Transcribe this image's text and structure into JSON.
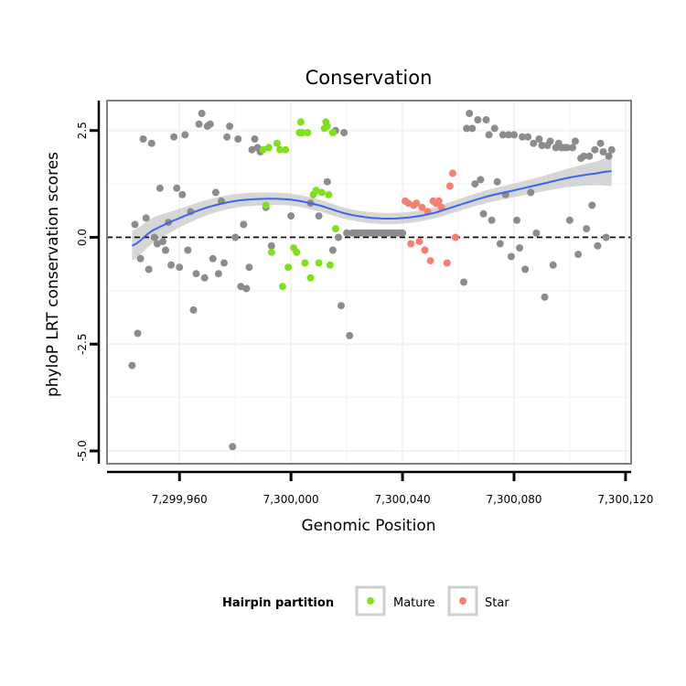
{
  "colors": {
    "other": "#8c8c8c",
    "mature": "#7fe11b",
    "star": "#f57f73",
    "smooth_line": "#3b67e8",
    "ribbon": "#cfcfcf",
    "grid": "#f2f2f2",
    "panel_border": "#7f7f7f"
  },
  "chart_data": {
    "type": "scatter",
    "title": "Conservation",
    "xlabel": "Genomic Position",
    "ylabel": "phyloP LRT conservation scores",
    "xlim": [
      7299934,
      7300122
    ],
    "ylim": [
      -5.3,
      3.2
    ],
    "x_ticks": [
      {
        "value": 7299960,
        "label": "7,299,960"
      },
      {
        "value": 7300000,
        "label": "7,300,000"
      },
      {
        "value": 7300040,
        "label": "7,300,040"
      },
      {
        "value": 7300080,
        "label": "7,300,080"
      },
      {
        "value": 7300120,
        "label": "7,300,120"
      }
    ],
    "y_ticks": [
      {
        "value": 2.5,
        "label": "2.5"
      },
      {
        "value": 0,
        "label": "0.0"
      },
      {
        "value": -2.5,
        "label": "-2.5"
      },
      {
        "value": -5,
        "label": "-5.0"
      }
    ],
    "hline": {
      "y": 0,
      "style": "dashed"
    },
    "legend": {
      "title": "Hairpin partition",
      "position": "bottom",
      "entries": [
        {
          "key": "mature",
          "label": "Mature"
        },
        {
          "key": "star",
          "label": "Star"
        }
      ]
    },
    "series": [
      {
        "name": "Other",
        "key": "other",
        "points": [
          [
            7299943,
            -3.0
          ],
          [
            7299944,
            0.3
          ],
          [
            7299945,
            -2.25
          ],
          [
            7299946,
            -0.5
          ],
          [
            7299947,
            2.3
          ],
          [
            7299948,
            0.45
          ],
          [
            7299949,
            -0.75
          ],
          [
            7299950,
            2.2
          ],
          [
            7299951,
            0.0
          ],
          [
            7299952,
            -0.15
          ],
          [
            7299953,
            1.15
          ],
          [
            7299954,
            -0.1
          ],
          [
            7299955,
            -0.3
          ],
          [
            7299956,
            0.35
          ],
          [
            7299957,
            -0.65
          ],
          [
            7299958,
            2.35
          ],
          [
            7299959,
            1.15
          ],
          [
            7299960,
            -0.7
          ],
          [
            7299961,
            1.0
          ],
          [
            7299962,
            2.4
          ],
          [
            7299963,
            -0.3
          ],
          [
            7299964,
            0.6
          ],
          [
            7299965,
            -1.7
          ],
          [
            7299966,
            -0.85
          ],
          [
            7299967,
            2.65
          ],
          [
            7299968,
            2.9
          ],
          [
            7299969,
            -0.95
          ],
          [
            7299970,
            2.6
          ],
          [
            7299971,
            2.65
          ],
          [
            7299972,
            -0.5
          ],
          [
            7299973,
            1.05
          ],
          [
            7299974,
            -0.85
          ],
          [
            7299975,
            0.85
          ],
          [
            7299976,
            -0.6
          ],
          [
            7299977,
            2.35
          ],
          [
            7299978,
            2.6
          ],
          [
            7299979,
            -4.9
          ],
          [
            7299980,
            0.0
          ],
          [
            7299981,
            2.3
          ],
          [
            7299982,
            -1.15
          ],
          [
            7299983,
            0.3
          ],
          [
            7299984,
            -1.2
          ],
          [
            7299985,
            -0.7
          ],
          [
            7299986,
            2.05
          ],
          [
            7299987,
            2.3
          ],
          [
            7299988,
            2.1
          ],
          [
            7299989,
            2.0
          ],
          [
            7299991,
            0.7
          ],
          [
            7299993,
            -0.2
          ],
          [
            7300000,
            0.5
          ],
          [
            7300007,
            0.8
          ],
          [
            7300010,
            0.5
          ],
          [
            7300013,
            1.3
          ],
          [
            7300015,
            -0.3
          ],
          [
            7300016,
            2.5
          ],
          [
            7300017,
            0.0
          ],
          [
            7300018,
            -1.6
          ],
          [
            7300019,
            2.45
          ],
          [
            7300020,
            0.1
          ],
          [
            7300021,
            -2.3
          ],
          [
            7300022,
            0.1
          ],
          [
            7300023,
            0.1
          ],
          [
            7300024,
            0.1
          ],
          [
            7300025,
            0.1
          ],
          [
            7300026,
            0.1
          ],
          [
            7300027,
            0.1
          ],
          [
            7300028,
            0.1
          ],
          [
            7300029,
            0.1
          ],
          [
            7300030,
            0.1
          ],
          [
            7300031,
            0.1
          ],
          [
            7300032,
            0.1
          ],
          [
            7300033,
            0.1
          ],
          [
            7300034,
            0.1
          ],
          [
            7300035,
            0.1
          ],
          [
            7300036,
            0.1
          ],
          [
            7300037,
            0.1
          ],
          [
            7300038,
            0.1
          ],
          [
            7300039,
            0.1
          ],
          [
            7300040,
            0.1
          ],
          [
            7300062,
            -1.05
          ],
          [
            7300063,
            2.55
          ],
          [
            7300064,
            2.9
          ],
          [
            7300065,
            2.55
          ],
          [
            7300066,
            1.25
          ],
          [
            7300067,
            2.75
          ],
          [
            7300068,
            1.35
          ],
          [
            7300069,
            0.55
          ],
          [
            7300070,
            2.75
          ],
          [
            7300071,
            2.4
          ],
          [
            7300072,
            0.4
          ],
          [
            7300073,
            2.55
          ],
          [
            7300074,
            1.3
          ],
          [
            7300075,
            -0.15
          ],
          [
            7300076,
            2.4
          ],
          [
            7300077,
            1.0
          ],
          [
            7300078,
            2.4
          ],
          [
            7300079,
            -0.45
          ],
          [
            7300080,
            2.4
          ],
          [
            7300081,
            0.4
          ],
          [
            7300082,
            -0.25
          ],
          [
            7300083,
            2.35
          ],
          [
            7300084,
            -0.75
          ],
          [
            7300085,
            2.35
          ],
          [
            7300086,
            1.05
          ],
          [
            7300087,
            2.2
          ],
          [
            7300088,
            0.1
          ],
          [
            7300089,
            2.3
          ],
          [
            7300090,
            2.15
          ],
          [
            7300091,
            -1.4
          ],
          [
            7300092,
            2.15
          ],
          [
            7300093,
            2.25
          ],
          [
            7300094,
            -0.65
          ],
          [
            7300095,
            2.1
          ],
          [
            7300096,
            2.2
          ],
          [
            7300097,
            2.1
          ],
          [
            7300098,
            2.1
          ],
          [
            7300099,
            2.1
          ],
          [
            7300100,
            0.4
          ],
          [
            7300101,
            2.1
          ],
          [
            7300102,
            2.25
          ],
          [
            7300103,
            -0.4
          ],
          [
            7300104,
            1.85
          ],
          [
            7300105,
            1.9
          ],
          [
            7300106,
            0.2
          ],
          [
            7300107,
            1.9
          ],
          [
            7300108,
            0.75
          ],
          [
            7300109,
            2.05
          ],
          [
            7300110,
            -0.2
          ],
          [
            7300111,
            2.2
          ],
          [
            7300112,
            2.0
          ],
          [
            7300113,
            0.0
          ],
          [
            7300114,
            1.9
          ],
          [
            7300115,
            2.05
          ]
        ]
      },
      {
        "name": "Mature",
        "key": "mature",
        "points": [
          [
            7299990,
            2.05
          ],
          [
            7299991,
            0.75
          ],
          [
            7299992,
            2.1
          ],
          [
            7299993,
            -0.35
          ],
          [
            7299995,
            2.2
          ],
          [
            7299996,
            2.05
          ],
          [
            7299997,
            -1.15
          ],
          [
            7299998,
            2.05
          ],
          [
            7299999,
            -0.7
          ],
          [
            7300001,
            -0.25
          ],
          [
            7300002,
            -0.35
          ],
          [
            7300003,
            2.45
          ],
          [
            7300003.5,
            2.7
          ],
          [
            7300004,
            2.45
          ],
          [
            7300005,
            -0.6
          ],
          [
            7300006,
            2.45
          ],
          [
            7300007,
            -0.95
          ],
          [
            7300008,
            1.0
          ],
          [
            7300009,
            1.1
          ],
          [
            7300010,
            -0.6
          ],
          [
            7300011,
            1.05
          ],
          [
            7300012,
            2.55
          ],
          [
            7300012.5,
            2.7
          ],
          [
            7300013,
            2.6
          ],
          [
            7300013.5,
            1.0
          ],
          [
            7300014,
            -0.65
          ],
          [
            7300015,
            2.45
          ],
          [
            7300016,
            0.2
          ]
        ]
      },
      {
        "name": "Star",
        "key": "star",
        "points": [
          [
            7300041,
            0.85
          ],
          [
            7300042,
            0.8
          ],
          [
            7300043,
            -0.15
          ],
          [
            7300044,
            0.75
          ],
          [
            7300045,
            0.8
          ],
          [
            7300046,
            -0.1
          ],
          [
            7300047,
            0.7
          ],
          [
            7300048,
            -0.3
          ],
          [
            7300049,
            0.6
          ],
          [
            7300050,
            -0.55
          ],
          [
            7300051,
            0.85
          ],
          [
            7300052,
            0.8
          ],
          [
            7300053,
            0.85
          ],
          [
            7300054,
            0.7
          ],
          [
            7300056,
            -0.6
          ],
          [
            7300057,
            1.2
          ],
          [
            7300058,
            1.5
          ],
          [
            7300059,
            0.0
          ]
        ]
      }
    ],
    "smooth": {
      "x": [
        7299943,
        7299950,
        7299960,
        7299970,
        7299980,
        7299990,
        7300000,
        7300010,
        7300020,
        7300030,
        7300040,
        7300050,
        7300060,
        7300070,
        7300080,
        7300090,
        7300100,
        7300110,
        7300115
      ],
      "y": [
        -0.2,
        0.15,
        0.45,
        0.7,
        0.85,
        0.9,
        0.88,
        0.75,
        0.55,
        0.45,
        0.45,
        0.55,
        0.75,
        0.95,
        1.1,
        1.25,
        1.4,
        1.5,
        1.55
      ],
      "se": [
        0.35,
        0.3,
        0.22,
        0.18,
        0.16,
        0.15,
        0.14,
        0.14,
        0.13,
        0.13,
        0.13,
        0.13,
        0.14,
        0.15,
        0.16,
        0.18,
        0.22,
        0.28,
        0.35
      ]
    }
  }
}
